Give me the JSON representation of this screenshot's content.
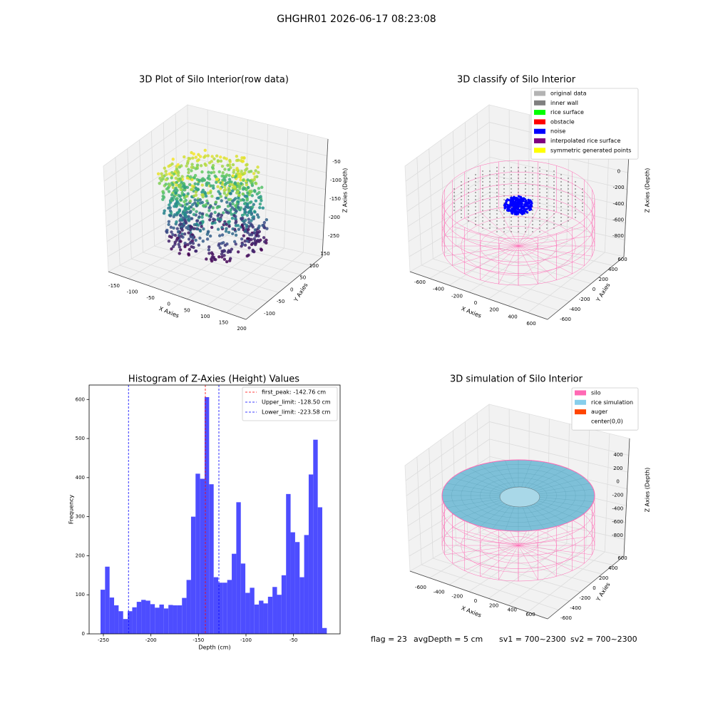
{
  "title": "GHGHR01 2026-06-17 08:23:08",
  "chart_data": [
    {
      "type": "scatter3d",
      "title": "3D Plot of Silo Interior(row data)",
      "xlabel": "X Axies",
      "ylabel": "Y Axies",
      "zlabel": "Z Axies (Depth)",
      "xticks": [
        -150,
        -100,
        -50,
        0,
        50,
        100,
        150,
        200
      ],
      "yticks": [
        -100,
        -50,
        0,
        50,
        100,
        150
      ],
      "zticks": [
        -250,
        -200,
        -150,
        -100,
        -50
      ]
    },
    {
      "type": "classify3d",
      "title": "3D classify of Silo Interior",
      "xlabel": "X Axies",
      "ylabel": "Y Axies",
      "zlabel": "Z Axies (Depth)",
      "xticks": [
        -600,
        -400,
        -200,
        0,
        200,
        400,
        600
      ],
      "yticks": [
        -600,
        -400,
        -200,
        0,
        200,
        400,
        600
      ],
      "zticks": [
        -800,
        -600,
        -400,
        -200,
        0,
        200
      ],
      "legend": [
        {
          "name": "original data",
          "color": "#b3b3b3"
        },
        {
          "name": "inner wall",
          "color": "#808080"
        },
        {
          "name": "rice surface",
          "color": "#00ff00"
        },
        {
          "name": "obstacle",
          "color": "#ff0000"
        },
        {
          "name": "noise",
          "color": "#0000ff"
        },
        {
          "name": "interpolated rice surface",
          "color": "#800080"
        },
        {
          "name": "symmetric generated points",
          "color": "#ffff00"
        }
      ]
    },
    {
      "type": "histogram",
      "title": "Histogram of Z-Axies (Height) Values",
      "xlabel": "Depth (cm)",
      "ylabel": "Frequency",
      "color": "#4d4dff",
      "bins": [
        -253,
        -248.24,
        -243.48,
        -238.72,
        -233.96,
        -229.2,
        -224.44,
        -219.68,
        -214.92,
        -210.16,
        -205.4,
        -200.64,
        -195.88,
        -191.12,
        -186.36,
        -181.6,
        -176.84,
        -172.08,
        -167.32,
        -162.56,
        -157.8,
        -153.04,
        -148.28,
        -143.52,
        -138.76,
        -134,
        -129.24,
        -124.48,
        -119.72,
        -114.96,
        -110.2,
        -105.44,
        -100.68,
        -95.92,
        -91.16,
        -86.4,
        -81.64,
        -76.88,
        -72.12,
        -67.36,
        -62.6,
        -57.84,
        -53.08,
        -48.32,
        -43.56,
        -38.8,
        -34.04,
        -29.28,
        -24.52,
        -19.76,
        -15
      ],
      "values": [
        113,
        172,
        93,
        73,
        58,
        38,
        58,
        68,
        82,
        87,
        85,
        76,
        67,
        75,
        65,
        74,
        73,
        73,
        92,
        138,
        300,
        410,
        397,
        606,
        383,
        145,
        131,
        131,
        138,
        205,
        337,
        180,
        105,
        118,
        75,
        85,
        78,
        95,
        120,
        100,
        150,
        358,
        260,
        235,
        145,
        253,
        408,
        497,
        324,
        15
      ],
      "xlim": [
        -265,
        -1
      ],
      "ylim": [
        0,
        637
      ],
      "xticks": [
        -250,
        -200,
        -150,
        -100,
        -50
      ],
      "yticks": [
        0,
        100,
        200,
        300,
        400,
        500,
        600
      ],
      "lines": [
        {
          "name": "first_peak: -142.76 cm",
          "value": -142.76,
          "color": "#ff0000"
        },
        {
          "name": "Upper_limit: -128.50 cm",
          "value": -128.5,
          "color": "#0000ff"
        },
        {
          "name": "Lower_limit: -223.58 cm",
          "value": -223.58,
          "color": "#0000ff"
        }
      ],
      "legend_position": "upper right"
    },
    {
      "type": "surface3d",
      "title": "3D simulation of Silo Interior",
      "xlabel": "X Axies",
      "ylabel": "Y Axies",
      "zlabel": "Z Axies (Depth)",
      "xticks": [
        -600,
        -400,
        -200,
        0,
        200,
        400,
        600
      ],
      "yticks": [
        -600,
        -400,
        -200,
        0,
        200,
        400,
        600
      ],
      "zticks": [
        -800,
        -600,
        -400,
        -200,
        0,
        200,
        400
      ],
      "legend": [
        {
          "name": "silo",
          "color": "#ff69b4"
        },
        {
          "name": "rice simulation",
          "color": "#87ceeb"
        },
        {
          "name": "auger",
          "color": "#ff4500"
        },
        {
          "name": "center(0,0)"
        }
      ]
    }
  ],
  "footer": [
    "flag = 23",
    "avgDepth = 5 cm",
    "sv1 = 700~2300",
    "sv2 = 700~2300"
  ]
}
